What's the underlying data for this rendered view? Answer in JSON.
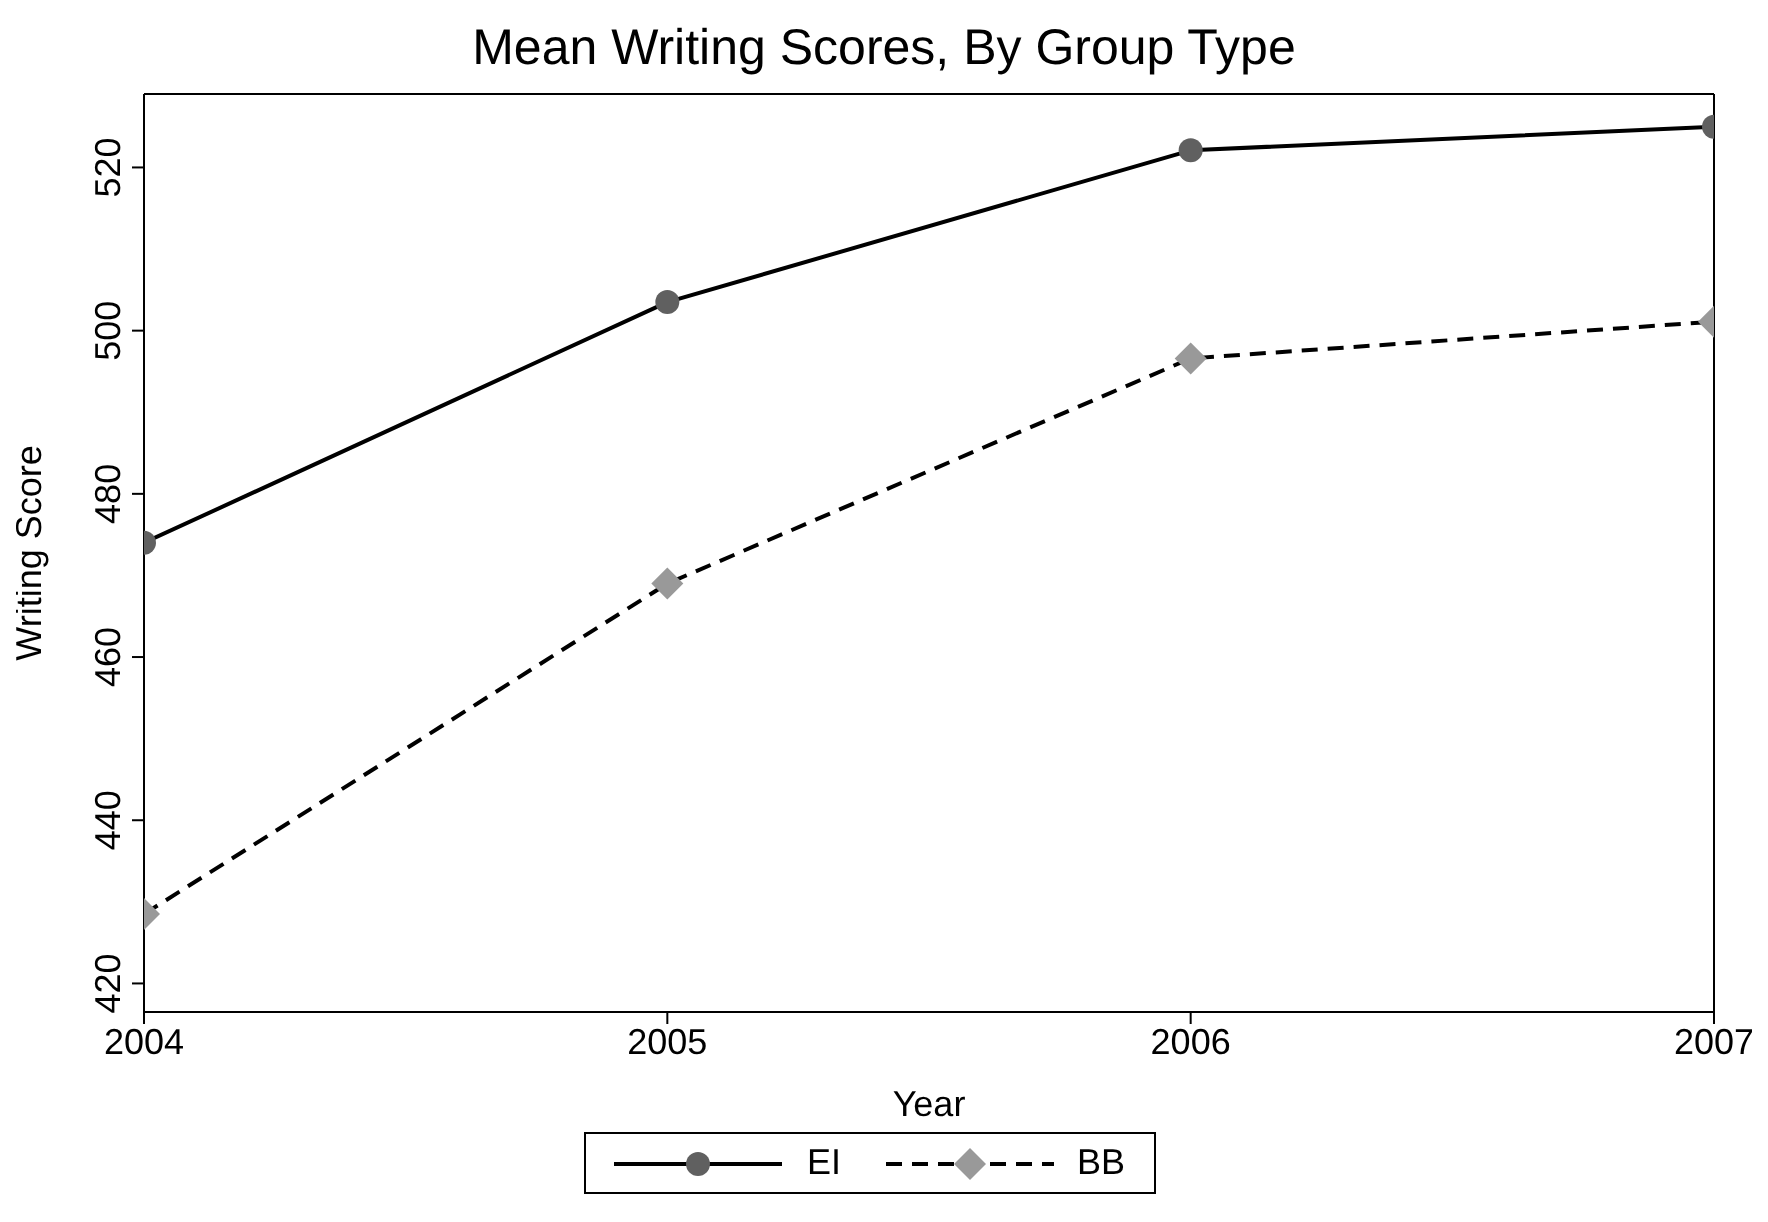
{
  "chart_data": {
    "type": "line",
    "title": "Mean Writing Scores, By Group Type",
    "xlabel": "Year",
    "ylabel": "Writing Score",
    "x": [
      2004,
      2005,
      2006,
      2007
    ],
    "xlim": [
      2004,
      2007
    ],
    "xticks": [
      2004,
      2005,
      2006,
      2007
    ],
    "ylim": [
      416.5,
      529
    ],
    "yticks": [
      420,
      440,
      460,
      480,
      500,
      520
    ],
    "series": [
      {
        "name": "EI",
        "color": "#606060",
        "values": [
          474,
          503.5,
          522.1,
          525
        ],
        "marker": "circle",
        "line_style": "solid"
      },
      {
        "name": "BB",
        "color": "#999999",
        "values": [
          428.5,
          469,
          496.6,
          501.1
        ],
        "marker": "diamond",
        "line_style": "dashed"
      }
    ],
    "grid": false,
    "legend": "bottom"
  }
}
